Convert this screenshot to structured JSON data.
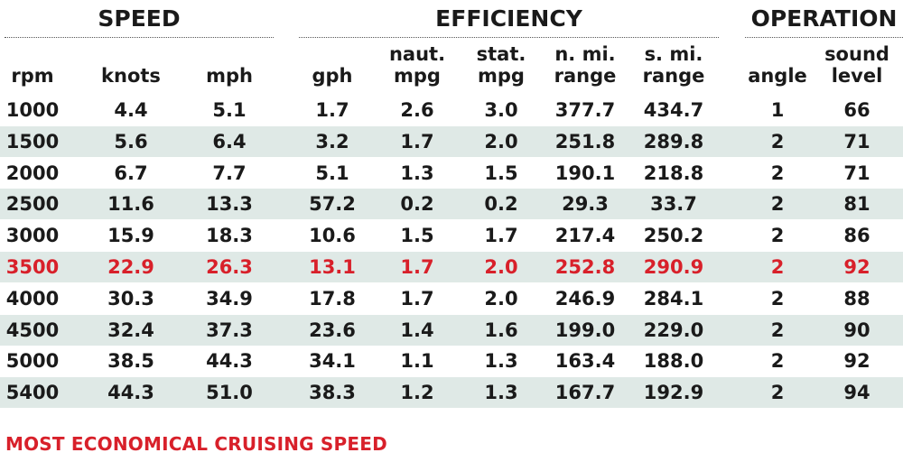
{
  "chart_data": {
    "type": "table",
    "groups": [
      {
        "title": "SPEED",
        "columns": [
          "rpm",
          "knots",
          "mph"
        ]
      },
      {
        "title": "EFFICIENCY",
        "columns": [
          "gph",
          "naut. mpg",
          "stat. mpg",
          "n. mi. range",
          "s. mi. range"
        ]
      },
      {
        "title": "OPERATION",
        "columns": [
          "angle",
          "sound level"
        ]
      }
    ],
    "columns": [
      {
        "key": "rpm",
        "lines": [
          "rpm"
        ]
      },
      {
        "key": "knots",
        "lines": [
          "knots"
        ]
      },
      {
        "key": "mph",
        "lines": [
          "mph"
        ]
      },
      {
        "key": "gph",
        "lines": [
          "gph"
        ]
      },
      {
        "key": "naut_mpg",
        "lines": [
          "naut.",
          "mpg"
        ]
      },
      {
        "key": "stat_mpg",
        "lines": [
          "stat.",
          "mpg"
        ]
      },
      {
        "key": "n_mi_range",
        "lines": [
          "n. mi.",
          "range"
        ]
      },
      {
        "key": "s_mi_range",
        "lines": [
          "s. mi.",
          "range"
        ]
      },
      {
        "key": "angle",
        "lines": [
          "angle"
        ]
      },
      {
        "key": "sound_level",
        "lines": [
          "sound",
          "level"
        ]
      }
    ],
    "rows": [
      [
        "1000",
        "4.4",
        "5.1",
        "1.7",
        "2.6",
        "3.0",
        "377.7",
        "434.7",
        "1",
        "66"
      ],
      [
        "1500",
        "5.6",
        "6.4",
        "3.2",
        "1.7",
        "2.0",
        "251.8",
        "289.8",
        "2",
        "71"
      ],
      [
        "2000",
        "6.7",
        "7.7",
        "5.1",
        "1.3",
        "1.5",
        "190.1",
        "218.8",
        "2",
        "71"
      ],
      [
        "2500",
        "11.6",
        "13.3",
        "57.2",
        "0.2",
        "0.2",
        "29.3",
        "33.7",
        "2",
        "81"
      ],
      [
        "3000",
        "15.9",
        "18.3",
        "10.6",
        "1.5",
        "1.7",
        "217.4",
        "250.2",
        "2",
        "86"
      ],
      [
        "3500",
        "22.9",
        "26.3",
        "13.1",
        "1.7",
        "2.0",
        "252.8",
        "290.9",
        "2",
        "92"
      ],
      [
        "4000",
        "30.3",
        "34.9",
        "17.8",
        "1.7",
        "2.0",
        "246.9",
        "284.1",
        "2",
        "88"
      ],
      [
        "4500",
        "32.4",
        "37.3",
        "23.6",
        "1.4",
        "1.6",
        "199.0",
        "229.0",
        "2",
        "90"
      ],
      [
        "5000",
        "38.5",
        "44.3",
        "34.1",
        "1.1",
        "1.3",
        "163.4",
        "188.0",
        "2",
        "92"
      ],
      [
        "5400",
        "44.3",
        "51.0",
        "38.3",
        "1.2",
        "1.3",
        "167.7",
        "192.9",
        "2",
        "94"
      ]
    ],
    "highlight_row_index": 5,
    "highlight_label": "MOST ECONOMICAL CRUISING SPEED"
  },
  "colors": {
    "highlight": "#d8202a",
    "row_shade": "#dfe9e6",
    "text": "#1a1a1a"
  }
}
